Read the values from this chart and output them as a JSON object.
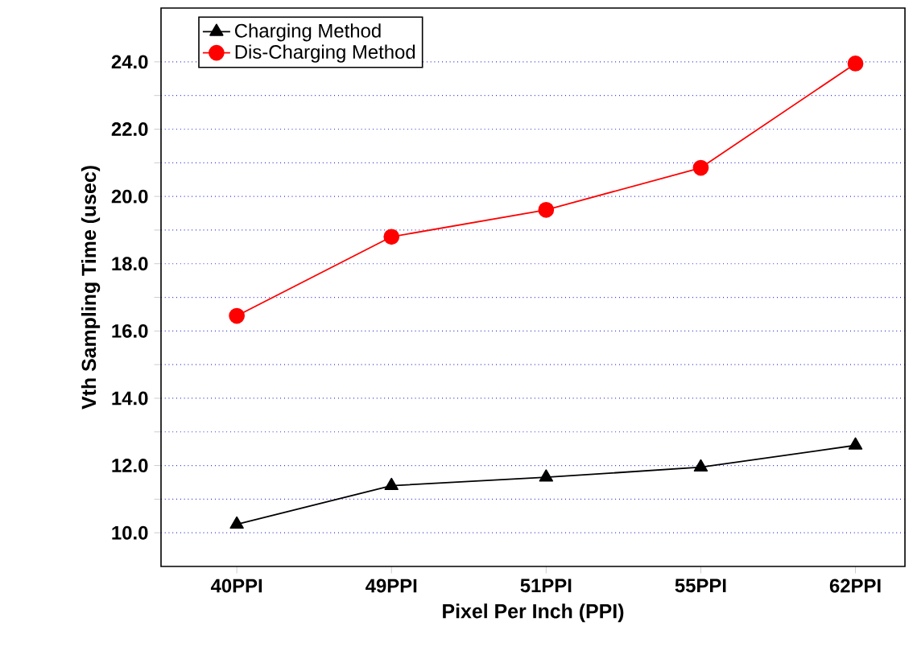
{
  "chart_data": {
    "type": "line",
    "xlabel": "Pixel Per Inch (PPI)",
    "ylabel": "Vth Sampling Time (usec)",
    "categories": [
      "40PPI",
      "49PPI",
      "51PPI",
      "55PPI",
      "62PPI"
    ],
    "series": [
      {
        "name": "Charging Method",
        "color": "#000000",
        "marker": "triangle",
        "values": [
          10.25,
          11.4,
          11.65,
          11.95,
          12.6
        ]
      },
      {
        "name": "Dis-Charging Method",
        "color": "#ff0000",
        "marker": "circle",
        "values": [
          16.45,
          18.8,
          19.6,
          20.85,
          23.95
        ]
      }
    ],
    "ylim": [
      9,
      25.6
    ],
    "yticks": [
      {
        "value": 10,
        "label": "10.0"
      },
      {
        "value": 11,
        "label": null
      },
      {
        "value": 12,
        "label": "12.0"
      },
      {
        "value": 13,
        "label": null
      },
      {
        "value": 14,
        "label": "14.0"
      },
      {
        "value": 15,
        "label": null
      },
      {
        "value": 16,
        "label": "16.0"
      },
      {
        "value": 17,
        "label": null
      },
      {
        "value": 18,
        "label": "18.0"
      },
      {
        "value": 19,
        "label": null
      },
      {
        "value": 20,
        "label": "20.0"
      },
      {
        "value": 21,
        "label": null
      },
      {
        "value": 22,
        "label": "22.0"
      },
      {
        "value": 23,
        "label": null
      },
      {
        "value": 24,
        "label": "24.0"
      }
    ],
    "grid": "y",
    "legend": "top left",
    "line_style": "solid"
  }
}
